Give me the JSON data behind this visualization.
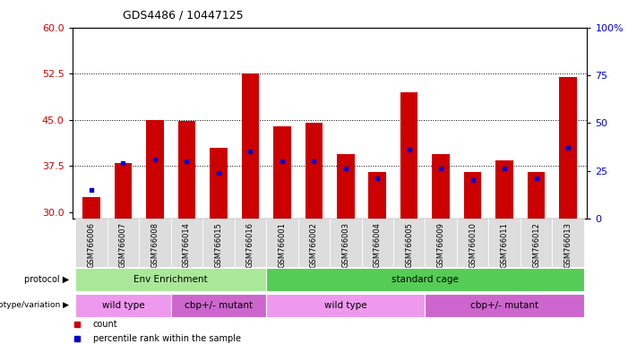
{
  "title": "GDS4486 / 10447125",
  "samples": [
    "GSM766006",
    "GSM766007",
    "GSM766008",
    "GSM766014",
    "GSM766015",
    "GSM766016",
    "GSM766001",
    "GSM766002",
    "GSM766003",
    "GSM766004",
    "GSM766005",
    "GSM766009",
    "GSM766010",
    "GSM766011",
    "GSM766012",
    "GSM766013"
  ],
  "counts": [
    32.5,
    38.0,
    45.0,
    44.8,
    40.5,
    52.5,
    44.0,
    44.5,
    39.5,
    36.5,
    49.5,
    39.5,
    36.5,
    38.5,
    36.5,
    52.0
  ],
  "percentiles": [
    15,
    29,
    31,
    30,
    24,
    35,
    30,
    30,
    26,
    21,
    36,
    26,
    20,
    26,
    21,
    37
  ],
  "ylim_left": [
    29,
    60
  ],
  "ylim_right": [
    0,
    100
  ],
  "yticks_left": [
    30,
    37.5,
    45,
    52.5,
    60
  ],
  "yticks_right": [
    0,
    25,
    50,
    75,
    100
  ],
  "bar_color": "#cc0000",
  "pct_color": "#0000cc",
  "bar_base": 29,
  "protocol_groups": [
    {
      "label": "Env Enrichment",
      "start": 0,
      "end": 6,
      "color": "#aae899"
    },
    {
      "label": "standard cage",
      "start": 6,
      "end": 16,
      "color": "#55cc55"
    }
  ],
  "genotype_groups": [
    {
      "label": "wild type",
      "start": 0,
      "end": 3,
      "color": "#ee99ee"
    },
    {
      "label": "cbp+/- mutant",
      "start": 3,
      "end": 6,
      "color": "#cc66cc"
    },
    {
      "label": "wild type",
      "start": 6,
      "end": 11,
      "color": "#ee99ee"
    },
    {
      "label": "cbp+/- mutant",
      "start": 11,
      "end": 16,
      "color": "#cc66cc"
    }
  ],
  "protocol_label": "protocol",
  "genotype_label": "genotype/variation",
  "legend_count": "count",
  "legend_pct": "percentile rank within the sample",
  "tick_color_left": "#cc0000",
  "tick_color_right": "#0000cc",
  "bg_color": "#ffffff"
}
